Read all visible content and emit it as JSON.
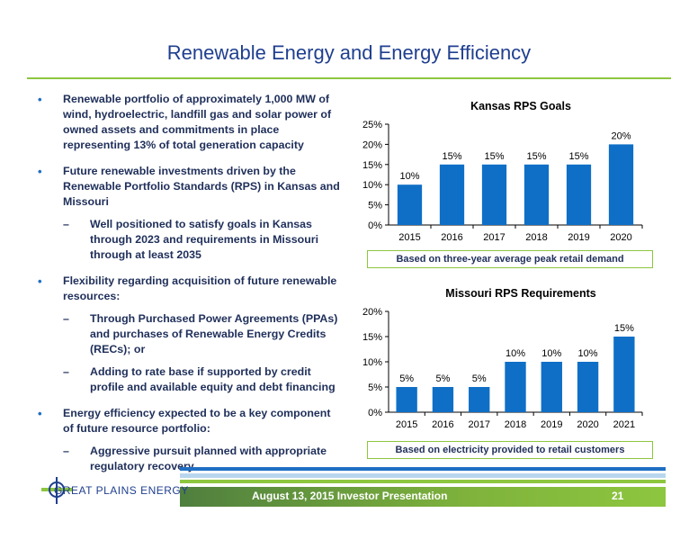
{
  "slide": {
    "title": "Renewable Energy and Energy Efficiency",
    "bullets": [
      {
        "text": "Renewable portfolio of approximately 1,000 MW of wind, hydroelectric, landfill gas and solar power of owned assets and commitments in place representing 13% of total generation capacity",
        "subs": []
      },
      {
        "text": "Future renewable investments driven by the Renewable Portfolio Standards (RPS) in Kansas and Missouri",
        "subs": [
          "Well positioned to satisfy goals in Kansas through 2023 and requirements in Missouri through at least 2035"
        ]
      },
      {
        "text": "Flexibility regarding acquisition of future renewable resources:",
        "subs": [
          "Through Purchased Power Agreements (PPAs) and purchases of Renewable Energy Credits (RECs); or",
          "Adding to rate base if supported by credit profile and available equity and debt financing"
        ]
      },
      {
        "text": "Energy efficiency expected to be a key component of future resource portfolio:",
        "subs": [
          "Aggressive pursuit planned with appropriate regulatory recovery"
        ]
      }
    ],
    "bullet_symbol": "•",
    "sub_symbol": "–"
  },
  "chart_data": [
    {
      "type": "bar",
      "title": "Kansas RPS Goals",
      "categories": [
        "2015",
        "2016",
        "2017",
        "2018",
        "2019",
        "2020"
      ],
      "values": [
        10,
        15,
        15,
        15,
        15,
        20
      ],
      "data_labels": [
        "10%",
        "15%",
        "15%",
        "15%",
        "15%",
        "20%"
      ],
      "yticks": [
        "0%",
        "5%",
        "10%",
        "15%",
        "20%",
        "25%"
      ],
      "ylim": [
        0,
        25
      ],
      "bar_color": "#0f6fc6",
      "grid": false,
      "note": "Based on three-year average peak retail demand"
    },
    {
      "type": "bar",
      "title": "Missouri RPS Requirements",
      "categories": [
        "2015",
        "2016",
        "2017",
        "2018",
        "2019",
        "2020",
        "2021"
      ],
      "values": [
        5,
        5,
        5,
        10,
        10,
        10,
        15
      ],
      "data_labels": [
        "5%",
        "5%",
        "5%",
        "10%",
        "10%",
        "10%",
        "15%"
      ],
      "yticks": [
        "0%",
        "5%",
        "10%",
        "15%",
        "20%"
      ],
      "ylim": [
        0,
        20
      ],
      "bar_color": "#0f6fc6",
      "grid": false,
      "note": "Based on electricity provided to retail customers"
    }
  ],
  "footer": {
    "text": "August 13, 2015 Investor Presentation",
    "page_number": "21",
    "logo_text": "GREAT PLAINS ENERGY"
  },
  "colors": {
    "title": "#1f3f8f",
    "accent_green": "#8dc63f",
    "accent_blue": "#1f6fc4"
  }
}
